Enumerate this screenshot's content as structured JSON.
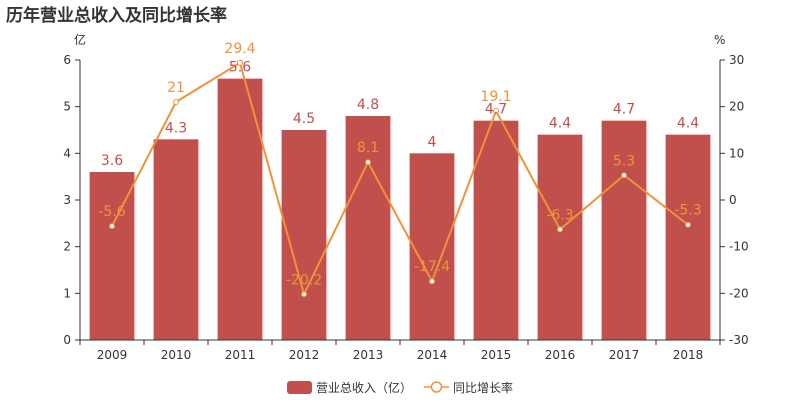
{
  "chart_data": {
    "type": "bar",
    "title": "历年营业总收入及同比增长率",
    "categories": [
      "2009",
      "2010",
      "2011",
      "2012",
      "2013",
      "2014",
      "2015",
      "2016",
      "2017",
      "2018"
    ],
    "series": [
      {
        "name": "营业总收入（亿）",
        "type": "bar",
        "axis": "left",
        "values": [
          3.6,
          4.3,
          5.6,
          4.5,
          4.8,
          4,
          4.7,
          4.4,
          4.7,
          4.4
        ],
        "labels": [
          "3.6",
          "4.3",
          "5.6",
          "4.5",
          "4.8",
          "4",
          "4.7",
          "4.4",
          "4.7",
          "4.4"
        ]
      },
      {
        "name": "同比增长率",
        "type": "line",
        "axis": "right",
        "values": [
          -5.6,
          21,
          29.4,
          -20.2,
          8.1,
          -17.4,
          19.1,
          -6.3,
          5.3,
          -5.3
        ],
        "labels": [
          "-5.6",
          "21",
          "29.4",
          "-20.2",
          "8.1",
          "-17.4",
          "19.1",
          "-6.3",
          "5.3",
          "-5.3"
        ]
      }
    ],
    "left_axis": {
      "unit": "亿",
      "range": [
        0,
        6
      ],
      "ticks": [
        "0",
        "1",
        "2",
        "3",
        "4",
        "5",
        "6"
      ]
    },
    "right_axis": {
      "unit": "%",
      "range": [
        -30,
        30
      ],
      "ticks": [
        "-30",
        "-20",
        "-10",
        "0",
        "10",
        "20",
        "30"
      ]
    },
    "grid": false,
    "legend_position": "bottom-center",
    "colors": {
      "bar": "#c1504c",
      "line": "#f0923a",
      "axis": "#333333"
    }
  }
}
